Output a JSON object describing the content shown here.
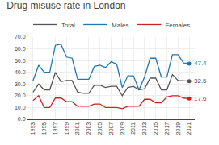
{
  "chart_data": {
    "type": "line",
    "title": "Drug misuse rate in London",
    "x": [
      1993,
      1994,
      1995,
      1996,
      1997,
      1998,
      1999,
      2000,
      2001,
      2002,
      2003,
      2004,
      2005,
      2006,
      2007,
      2008,
      2009,
      2010,
      2011,
      2012,
      2013,
      2014,
      2015,
      2016,
      2017,
      2018,
      2019,
      2020,
      2021
    ],
    "series": [
      {
        "name": "Total",
        "color": "#555555",
        "values": [
          23,
          30,
          25,
          25,
          40,
          32,
          33,
          33,
          23,
          22,
          22,
          29,
          29,
          27,
          28,
          28,
          20,
          27,
          28,
          25,
          26,
          35,
          35,
          25,
          25,
          38,
          33,
          33,
          32.5
        ]
      },
      {
        "name": "Males",
        "color": "#1f77b4",
        "values": [
          33,
          46,
          40,
          40,
          63,
          64,
          53,
          52,
          34,
          34,
          34,
          45,
          46,
          44,
          49,
          47,
          27,
          37,
          37,
          25,
          36,
          52,
          52,
          36,
          36,
          55,
          55,
          48,
          47.4
        ]
      },
      {
        "name": "Females",
        "color": "#cc2222",
        "values": [
          16,
          20,
          10,
          10,
          18,
          18,
          15,
          15,
          11,
          11,
          11,
          13,
          13,
          10,
          10,
          10,
          9,
          11,
          11,
          11,
          17,
          17,
          14,
          14,
          19,
          20,
          20,
          18,
          17.6
        ]
      }
    ],
    "marker": "circle",
    "xlim": [
      1992,
      2022
    ],
    "xticks": [
      1993,
      1995,
      1997,
      1999,
      2001,
      2003,
      2005,
      2007,
      2009,
      2011,
      2013,
      2015,
      2017,
      2019,
      2021
    ],
    "ylim": [
      0,
      70
    ],
    "yticks": [
      {
        "value": 0,
        "label": "0.0"
      },
      {
        "value": 10,
        "label": "10.0"
      },
      {
        "value": 20,
        "label": "20.0"
      },
      {
        "value": 30,
        "label": "30.0"
      },
      {
        "value": 40,
        "label": "40.0"
      },
      {
        "value": 50,
        "label": "50.0"
      },
      {
        "value": 60,
        "label": "60.0"
      },
      {
        "value": 70,
        "label": "70.0"
      }
    ],
    "grid": true,
    "legend": "upper right",
    "annotations": [
      {
        "text": "47.4",
        "x": 2021,
        "y": 47.4,
        "color": "#1f77b4"
      },
      {
        "text": "32.5",
        "x": 2021,
        "y": 32.5,
        "color": "#555555"
      },
      {
        "text": "17.6",
        "x": 2021,
        "y": 17.6,
        "color": "#cc2222"
      }
    ]
  }
}
